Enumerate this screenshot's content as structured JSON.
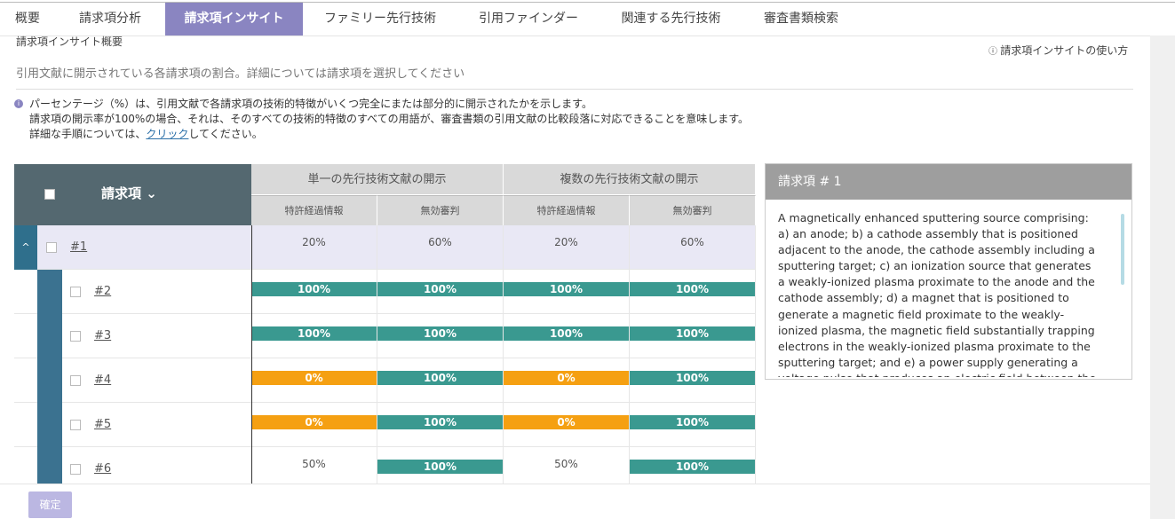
{
  "tabs": {
    "items": [
      "概要",
      "請求項分析",
      "請求項インサイト",
      "ファミリー先行技術",
      "引用ファインダー",
      "関連する先行技術",
      "審査書類検索"
    ],
    "active": 2
  },
  "section": {
    "title": "請求項インサイト概要",
    "help": "請求項インサイトの使い方",
    "description": "引用文献に開示されている各請求項の割合。詳細については請求項を選択してください"
  },
  "info": {
    "line1": "パーセンテージ（%）は、引用文献で各請求項の技術的特徴がいくつ完全にまたは部分的に開示されたかを示します。",
    "line2": "請求項の開示率が100%の場合、それは、そのすべての技術的特徴のすべての用語が、審査書類の引用文献の比較段落に対応できることを意味します。",
    "line3_before": "詳細な手順については、",
    "line3_link": "クリック",
    "line3_after": "してください。"
  },
  "table": {
    "claim_header": "請求項",
    "groups": [
      "単一の先行技術文献の開示",
      "複数の先行技術文献の開示"
    ],
    "subheaders": [
      "特許経過情報",
      "無効審判",
      "特許経過情報",
      "無効審判"
    ],
    "rows": [
      {
        "label": "#1",
        "cells": [
          {
            "text": "20%",
            "color": null
          },
          {
            "text": "60%",
            "color": null
          },
          {
            "text": "20%",
            "color": null
          },
          {
            "text": "60%",
            "color": null
          }
        ]
      },
      {
        "label": "#2",
        "cells": [
          {
            "text": "100%",
            "color": "#3a9990"
          },
          {
            "text": "100%",
            "color": "#3a9990"
          },
          {
            "text": "100%",
            "color": "#3a9990"
          },
          {
            "text": "100%",
            "color": "#3a9990"
          }
        ]
      },
      {
        "label": "#3",
        "cells": [
          {
            "text": "100%",
            "color": "#3a9990"
          },
          {
            "text": "100%",
            "color": "#3a9990"
          },
          {
            "text": "100%",
            "color": "#3a9990"
          },
          {
            "text": "100%",
            "color": "#3a9990"
          }
        ]
      },
      {
        "label": "#4",
        "cells": [
          {
            "text": "0%",
            "color": "#f5a012"
          },
          {
            "text": "100%",
            "color": "#3a9990"
          },
          {
            "text": "0%",
            "color": "#f5a012"
          },
          {
            "text": "100%",
            "color": "#3a9990"
          }
        ]
      },
      {
        "label": "#5",
        "cells": [
          {
            "text": "0%",
            "color": "#f5a012"
          },
          {
            "text": "100%",
            "color": "#3a9990"
          },
          {
            "text": "0%",
            "color": "#f5a012"
          },
          {
            "text": "100%",
            "color": "#3a9990"
          }
        ]
      },
      {
        "label": "#6",
        "cells": [
          {
            "text": "50%",
            "color": null
          },
          {
            "text": "100%",
            "color": "#3a9990"
          },
          {
            "text": "50%",
            "color": null
          },
          {
            "text": "100%",
            "color": "#3a9990"
          }
        ]
      }
    ]
  },
  "detail": {
    "title": "請求項 # 1",
    "text": "A magnetically enhanced sputtering source comprising: a) an anode; b) a cathode assembly that is positioned adjacent to the anode, the cathode assembly including a sputtering target; c) an ionization source that generates a weakly-ionized plasma proximate to the anode and the cathode assembly; d) a magnet that is positioned to generate a magnetic field proximate to the weakly-ionized plasma, the magnetic field substantially trapping electrons in the weakly-ionized plasma proximate to the sputtering target; and e) a power supply generating a voltage pulse that produces an electric field between the cathode"
  },
  "footer": {
    "button": "確定"
  }
}
